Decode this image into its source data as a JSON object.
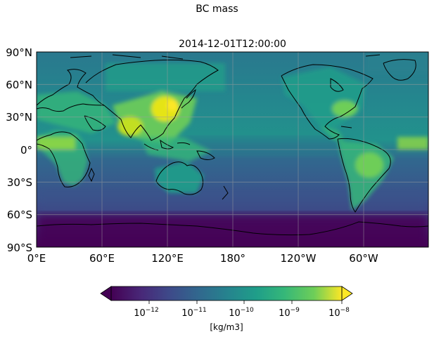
{
  "figure": {
    "suptitle": "BC mass",
    "subtitle": "2014-12-01T12:00:00"
  },
  "map": {
    "projection": "PlateCarree (central_longitude 180)",
    "lon_ticks": [
      "0°E",
      "60°E",
      "120°E",
      "180°",
      "120°W",
      "60°W"
    ],
    "lat_ticks": [
      "90°N",
      "60°N",
      "30°N",
      "0°",
      "30°S",
      "60°S",
      "90°S"
    ],
    "gridlines": true,
    "coastlines": true,
    "colormap": "viridis",
    "field_description_levels": {
      "polar_min": 2e-13,
      "southern_ocean": 1e-12,
      "remote_ocean": 1e-11,
      "continental": 1e-10,
      "east_asia_india_peak": 5e-09
    }
  },
  "colorbar": {
    "scale": "log",
    "range": [
      2e-13,
      1e-08
    ],
    "extend": "both",
    "ticks": [
      {
        "base": "10",
        "exp": "−12",
        "value": 1e-12
      },
      {
        "base": "10",
        "exp": "−11",
        "value": 1e-11
      },
      {
        "base": "10",
        "exp": "−10",
        "value": 1e-10
      },
      {
        "base": "10",
        "exp": "−9",
        "value": 1e-09
      },
      {
        "base": "10",
        "exp": "−8",
        "value": 1e-08
      }
    ],
    "label": "[kg/m3]"
  },
  "colors": {
    "viridis_0": "#440154",
    "viridis_25": "#3b528b",
    "viridis_50": "#21918c",
    "viridis_75": "#5ec962",
    "viridis_100": "#fde725"
  }
}
